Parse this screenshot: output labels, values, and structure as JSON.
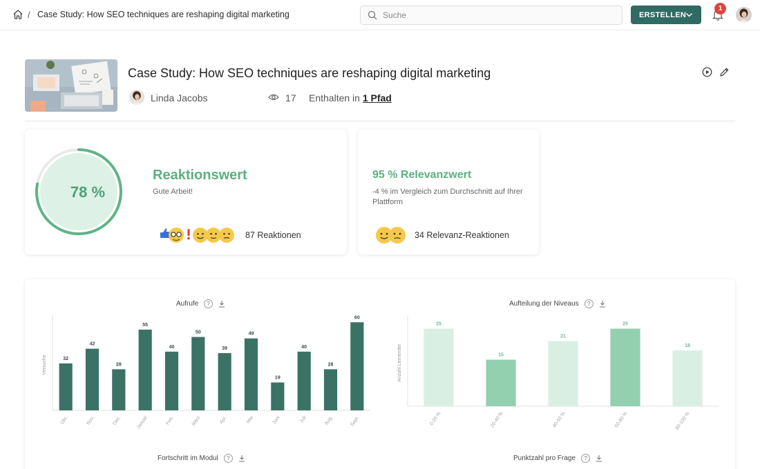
{
  "topbar": {
    "breadcrumb_separator": "/",
    "breadcrumb_title": "Case Study: How SEO techniques are reshaping digital marketing",
    "search_placeholder": "Suche",
    "create_button": "ERSTELLEN",
    "notification_count": "1"
  },
  "header": {
    "title": "Case Study: How SEO techniques are reshaping digital marketing",
    "author": "Linda Jacobs",
    "views": "17",
    "contained_prefix": "Enthalten in",
    "contained_link": "1 Pfad"
  },
  "reaction_card": {
    "gauge_value": "78 %",
    "gauge_fraction": 0.78,
    "title": "Reaktionswert",
    "subtitle": "Gute Arbeit!",
    "count_label": "87 Reaktionen"
  },
  "relevance_card": {
    "title": "95 % Relevanzwert",
    "subtitle": "-4 % im Vergleich zum Durchschnitt auf Ihrer Plattform",
    "count_label": "34 Relevanz-Reaktionen"
  },
  "colors": {
    "accent_dark": "#2f6a63",
    "accent_green": "#5bb07f",
    "bar_dark": "#3b7266",
    "bar_mid": "#92d0b0",
    "bar_light": "#d9efe4",
    "badge_red": "#e0443e"
  },
  "charts": {
    "views_title": "Aufrufe",
    "levels_title": "Aufteilung der Niveaus",
    "progress_title": "Fortschritt im Modul",
    "score_title": "Punktzahl pro Frage"
  },
  "chart_data": [
    {
      "type": "bar",
      "title": "Aufrufe",
      "ylabel": "Versuche",
      "xlabel": "",
      "categories": [
        "Okt.",
        "Nov.",
        "Dez.",
        "Januar",
        "Feb.",
        "März",
        "Apr.",
        "Mai",
        "Juni",
        "Juli",
        "Aug.",
        "Sept."
      ],
      "values": [
        32,
        42,
        28,
        55,
        40,
        50,
        39,
        49,
        19,
        40,
        28,
        60
      ],
      "ylim": [
        0,
        62
      ],
      "grid": false
    },
    {
      "type": "bar",
      "title": "Aufteilung der Niveaus",
      "ylabel": "Anzahl Lernender",
      "xlabel": "",
      "categories": [
        "0-20 %",
        "20-40 %",
        "40-60 %",
        "60-80 %",
        "80-100 %"
      ],
      "values": [
        25,
        15,
        21,
        25,
        18
      ],
      "ylim": [
        0,
        28
      ],
      "grid": false
    }
  ]
}
